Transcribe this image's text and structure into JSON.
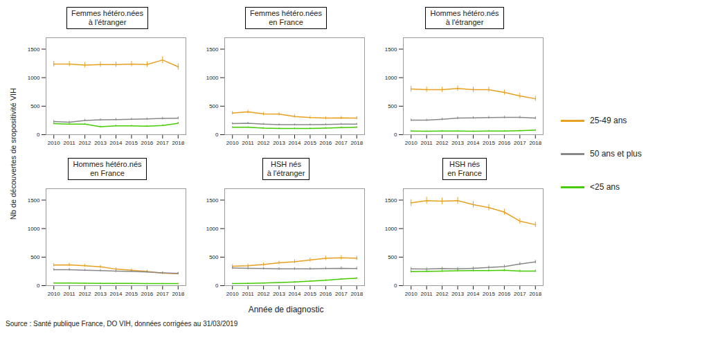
{
  "chart_data": [
    {
      "type": "line",
      "title": "Femmes hétéro.nées\nà l'étranger",
      "x": [
        2010,
        2011,
        2012,
        2013,
        2014,
        2015,
        2016,
        2017,
        2018
      ],
      "series": [
        {
          "name": "25-49 ans",
          "color": "#E8A020",
          "values": [
            1240,
            1240,
            1220,
            1230,
            1230,
            1240,
            1230,
            1310,
            1190
          ],
          "errors": [
            50,
            45,
            45,
            45,
            45,
            45,
            50,
            60,
            55
          ]
        },
        {
          "name": "50 ans et plus",
          "color": "#888888",
          "values": [
            230,
            220,
            250,
            260,
            265,
            270,
            275,
            285,
            290
          ],
          "errors": [
            20,
            18,
            20,
            20,
            20,
            20,
            20,
            22,
            22
          ]
        },
        {
          "name": "<25 ans",
          "color": "#44CC00",
          "values": [
            195,
            185,
            185,
            140,
            155,
            155,
            150,
            160,
            200
          ],
          "errors": [
            15,
            15,
            15,
            12,
            12,
            12,
            12,
            15,
            18
          ]
        }
      ],
      "xlim": [
        2009.5,
        2018.5
      ],
      "xticks": [
        2010,
        2011,
        2012,
        2013,
        2014,
        2015,
        2016,
        2017,
        2018
      ],
      "ylim": [
        0,
        1700
      ],
      "yticks": [
        0,
        500,
        1000,
        1500
      ],
      "grid": false
    },
    {
      "type": "line",
      "title": "Femmes hétéro.nées\nen France",
      "x": [
        2010,
        2011,
        2012,
        2013,
        2014,
        2015,
        2016,
        2017,
        2018
      ],
      "series": [
        {
          "name": "25-49 ans",
          "color": "#E8A020",
          "values": [
            380,
            400,
            365,
            360,
            320,
            300,
            290,
            295,
            290
          ],
          "errors": [
            30,
            30,
            28,
            28,
            26,
            26,
            26,
            26,
            26
          ]
        },
        {
          "name": "50 ans et plus",
          "color": "#888888",
          "values": [
            195,
            200,
            185,
            175,
            175,
            175,
            180,
            185,
            185
          ],
          "errors": [
            18,
            18,
            16,
            16,
            16,
            16,
            16,
            16,
            16
          ]
        },
        {
          "name": "<25 ans",
          "color": "#44CC00",
          "values": [
            130,
            130,
            115,
            110,
            110,
            110,
            115,
            125,
            130
          ],
          "errors": [
            12,
            12,
            11,
            11,
            11,
            11,
            11,
            12,
            12
          ]
        }
      ],
      "xlim": [
        2009.5,
        2018.5
      ],
      "xticks": [
        2010,
        2011,
        2012,
        2013,
        2014,
        2015,
        2016,
        2017,
        2018
      ],
      "ylim": [
        0,
        1700
      ],
      "yticks": [
        0,
        500,
        1000,
        1500
      ],
      "grid": false
    },
    {
      "type": "line",
      "title": "Hommes hétéro.nés\nà l'étranger",
      "x": [
        2010,
        2011,
        2012,
        2013,
        2014,
        2015,
        2016,
        2017,
        2018
      ],
      "series": [
        {
          "name": "25-49 ans",
          "color": "#E8A020",
          "values": [
            800,
            790,
            790,
            810,
            790,
            790,
            740,
            680,
            630
          ],
          "errors": [
            50,
            45,
            45,
            45,
            45,
            45,
            45,
            45,
            45
          ]
        },
        {
          "name": "50 ans et plus",
          "color": "#888888",
          "values": [
            255,
            255,
            270,
            290,
            295,
            300,
            305,
            305,
            290
          ],
          "errors": [
            20,
            20,
            22,
            22,
            22,
            22,
            22,
            22,
            22
          ]
        },
        {
          "name": "<25 ans",
          "color": "#44CC00",
          "values": [
            65,
            60,
            65,
            65,
            60,
            65,
            65,
            70,
            80
          ],
          "errors": [
            10,
            9,
            9,
            9,
            9,
            9,
            9,
            10,
            10
          ]
        }
      ],
      "xlim": [
        2009.5,
        2018.5
      ],
      "xticks": [
        2010,
        2011,
        2012,
        2013,
        2014,
        2015,
        2016,
        2017,
        2018
      ],
      "ylim": [
        0,
        1700
      ],
      "yticks": [
        0,
        500,
        1000,
        1500
      ],
      "grid": false
    },
    {
      "type": "line",
      "title": "Hommes hétéro.nés\nen France",
      "x": [
        2010,
        2011,
        2012,
        2013,
        2014,
        2015,
        2016,
        2017,
        2018
      ],
      "series": [
        {
          "name": "25-49 ans",
          "color": "#E8A020",
          "values": [
            360,
            365,
            350,
            330,
            290,
            270,
            250,
            220,
            210
          ],
          "errors": [
            28,
            28,
            26,
            26,
            24,
            24,
            22,
            20,
            20
          ]
        },
        {
          "name": "50 ans et plus",
          "color": "#888888",
          "values": [
            280,
            280,
            270,
            265,
            255,
            250,
            240,
            225,
            215
          ],
          "errors": [
            22,
            22,
            20,
            20,
            20,
            20,
            18,
            18,
            18
          ]
        },
        {
          "name": "<25 ans",
          "color": "#44CC00",
          "values": [
            45,
            45,
            42,
            40,
            38,
            38,
            35,
            35,
            35
          ],
          "errors": [
            8,
            8,
            7,
            7,
            7,
            7,
            6,
            6,
            6
          ]
        }
      ],
      "xlim": [
        2009.5,
        2018.5
      ],
      "xticks": [
        2010,
        2011,
        2012,
        2013,
        2014,
        2015,
        2016,
        2017,
        2018
      ],
      "ylim": [
        0,
        1700
      ],
      "yticks": [
        0,
        500,
        1000,
        1500
      ],
      "grid": false
    },
    {
      "type": "line",
      "title": "HSH nés\nà l'étranger",
      "x": [
        2010,
        2011,
        2012,
        2013,
        2014,
        2015,
        2016,
        2017,
        2018
      ],
      "series": [
        {
          "name": "25-49 ans",
          "color": "#E8A020",
          "values": [
            340,
            350,
            370,
            400,
            420,
            450,
            480,
            490,
            480
          ],
          "errors": [
            30,
            30,
            30,
            32,
            32,
            35,
            35,
            38,
            38
          ]
        },
        {
          "name": "50 ans et plus",
          "color": "#888888",
          "values": [
            310,
            305,
            300,
            295,
            295,
            295,
            300,
            305,
            300
          ],
          "errors": [
            24,
            24,
            22,
            22,
            22,
            22,
            22,
            24,
            24
          ]
        },
        {
          "name": "<25 ans",
          "color": "#44CC00",
          "values": [
            35,
            40,
            45,
            55,
            65,
            80,
            95,
            115,
            130
          ],
          "errors": [
            7,
            7,
            8,
            8,
            9,
            10,
            11,
            12,
            13
          ]
        }
      ],
      "xlim": [
        2009.5,
        2018.5
      ],
      "xticks": [
        2010,
        2011,
        2012,
        2013,
        2014,
        2015,
        2016,
        2017,
        2018
      ],
      "ylim": [
        0,
        1700
      ],
      "yticks": [
        0,
        500,
        1000,
        1500
      ],
      "grid": false
    },
    {
      "type": "line",
      "title": "HSH nés\nen France",
      "x": [
        2010,
        2011,
        2012,
        2013,
        2014,
        2015,
        2016,
        2017,
        2018
      ],
      "series": [
        {
          "name": "25-49 ans",
          "color": "#E8A020",
          "values": [
            1450,
            1490,
            1480,
            1490,
            1420,
            1370,
            1290,
            1130,
            1070
          ],
          "errors": [
            60,
            60,
            58,
            58,
            55,
            55,
            52,
            48,
            48
          ]
        },
        {
          "name": "50 ans et plus",
          "color": "#888888",
          "values": [
            295,
            290,
            300,
            295,
            305,
            320,
            335,
            380,
            415
          ],
          "errors": [
            24,
            24,
            24,
            24,
            24,
            26,
            26,
            28,
            30
          ]
        },
        {
          "name": "<25 ans",
          "color": "#44CC00",
          "values": [
            245,
            250,
            255,
            260,
            265,
            265,
            270,
            255,
            255
          ],
          "errors": [
            20,
            20,
            20,
            20,
            20,
            20,
            20,
            20,
            20
          ]
        }
      ],
      "xlim": [
        2009.5,
        2018.5
      ],
      "xticks": [
        2010,
        2011,
        2012,
        2013,
        2014,
        2015,
        2016,
        2017,
        2018
      ],
      "ylim": [
        0,
        1700
      ],
      "yticks": [
        0,
        500,
        1000,
        1500
      ],
      "grid": false
    }
  ],
  "xlabel": "Année de diagnostic",
  "ylabel": "Nb de découvertes de sropositivité VIH",
  "annotations": [
    "Source : Santé publique France, DO VIH, données corrigées au 31/03/2019"
  ],
  "legend": "right"
}
